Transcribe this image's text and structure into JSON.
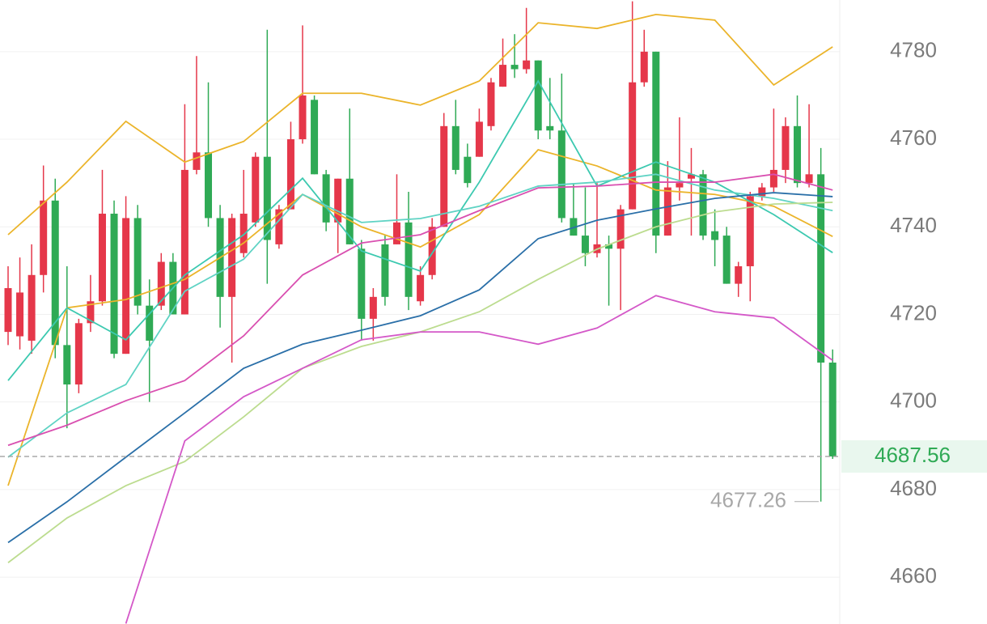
{
  "chart_data": {
    "type": "candlestick",
    "ylim": [
      4649.3,
      4791.8
    ],
    "yticks": [
      4660,
      4680,
      4700,
      4720,
      4740,
      4760,
      4780
    ],
    "grid": true,
    "up_color": "#e5374a",
    "down_color": "#2faa55",
    "open": [
      4716,
      4715,
      4714,
      4729,
      4746,
      4713,
      4704,
      4718,
      4723,
      4743,
      4711,
      4742,
      4722,
      4722,
      4732,
      4720,
      4753,
      4757,
      4742,
      4724,
      4734,
      4741,
      4756,
      4736,
      4744,
      4760,
      4769,
      4752,
      4741,
      4751,
      4735,
      4719,
      4736,
      4736,
      4741,
      4723,
      4729,
      4740,
      4763,
      4756,
      4756,
      4763,
      4772,
      4777,
      4776,
      4778,
      4763,
      4762,
      4742,
      4738,
      4734,
      4736,
      4735,
      4744,
      4773,
      4780,
      4738,
      4749,
      4751,
      4752,
      4739,
      4738,
      4727,
      4731,
      4747,
      4749,
      4753,
      4763,
      4750,
      4752,
      4709
    ],
    "high": [
      4731,
      4733,
      4736,
      4754,
      4751,
      4731,
      4719,
      4729,
      4753,
      4746,
      4747,
      4745,
      4728,
      4734,
      4734,
      4768,
      4779,
      4773,
      4745,
      4743,
      4753,
      4757,
      4785,
      4745,
      4764,
      4786,
      4770,
      4753,
      4751,
      4767,
      4737,
      4726,
      4738,
      4752,
      4748,
      4731,
      4742,
      4766,
      4769,
      4759,
      4767,
      4774,
      4783,
      4784,
      4790,
      4778,
      4774,
      4775,
      4750,
      4749,
      4750,
      4738,
      4745,
      4791.5,
      4785,
      4780,
      4755,
      4765,
      4758,
      4753,
      4744,
      4740,
      4732,
      4748,
      4750,
      4767,
      4765,
      4770,
      4768,
      4758,
      4712
    ],
    "low": [
      4713,
      4712,
      4711,
      4725,
      4710,
      4694,
      4702,
      4716,
      4722,
      4710,
      4711,
      4720,
      4700,
      4721,
      4720,
      4720,
      4752,
      4740,
      4717,
      4709,
      4733,
      4740,
      4727,
      4735,
      4744,
      4759,
      4752,
      4739,
      4734,
      4736,
      4714,
      4714,
      4722,
      4736,
      4721,
      4722,
      4728,
      4740,
      4752,
      4749,
      4756,
      4762,
      4772,
      4774,
      4775,
      4760,
      4760,
      4741,
      4738,
      4731,
      4733,
      4722,
      4721,
      4744,
      4772,
      4734,
      4738,
      4746,
      4738,
      4737,
      4731,
      4727,
      4724,
      4723,
      4746,
      4748,
      4750,
      4749,
      4749,
      4677.26,
      4687
    ],
    "close": [
      4726,
      4725,
      4729,
      4746,
      4713,
      4704,
      4718,
      4723,
      4743,
      4711,
      4742,
      4722,
      4714,
      4732,
      4720,
      4753,
      4757,
      4742,
      4724,
      4742,
      4743,
      4756,
      4737,
      4744,
      4760,
      4770,
      4752,
      4741,
      4751,
      4736,
      4719,
      4724,
      4724,
      4741,
      4724,
      4729,
      4740,
      4763,
      4753,
      4750,
      4764,
      4773,
      4777,
      4776,
      4778,
      4762,
      4762,
      4742,
      4738,
      4734,
      4736,
      4735,
      4744,
      4773,
      4780,
      4738,
      4749,
      4750,
      4752,
      4738,
      4737,
      4727,
      4731,
      4747,
      4749,
      4753,
      4763,
      4750,
      4752,
      4709,
      4687.56
    ],
    "overlay_x": [
      0,
      5,
      10,
      15,
      20,
      25,
      30,
      35,
      40,
      45,
      50,
      55,
      60,
      65,
      70
    ],
    "overlays": [
      {
        "color": "#ebb42a",
        "values": [
          4738.2,
          4750.2,
          4764.1,
          4754.8,
          4759.5,
          4770.5,
          4770.5,
          4767.8,
          4773.3,
          4786.6,
          4785.3,
          4788.5,
          4787.2,
          4772.4,
          4781.1
        ]
      },
      {
        "color": "#ebb42a",
        "values": [
          4680.9,
          4721.5,
          4723.4,
          4728.0,
          4736.3,
          4747.4,
          4740.0,
          4735.4,
          4742.8,
          4757.6,
          4753.9,
          4748.4,
          4747.4,
          4744.7,
          4737.8
        ]
      },
      {
        "color": "#3cc9b0",
        "values": [
          4704.9,
          4721.5,
          4714.2,
          4729.0,
          4738.2,
          4751.1,
          4734.5,
          4729.9,
          4750.2,
          4773.3,
          4749.3,
          4754.8,
          4750.2,
          4742.8,
          4734.1
        ]
      },
      {
        "color": "#5fd3c4",
        "values": [
          4687.4,
          4697.5,
          4704.0,
          4725.3,
          4732.6,
          4747.4,
          4741.0,
          4741.9,
          4744.7,
          4749.3,
          4750.2,
          4752.0,
          4748.4,
          4746.5,
          4743.7
        ]
      },
      {
        "color": "#d94fb0",
        "values": [
          4690.1,
          4694.7,
          4700.3,
          4704.9,
          4715.1,
          4729.0,
          4736.3,
          4738.2,
          4743.7,
          4748.9,
          4749.3,
          4750.2,
          4750.2,
          4752.0,
          4748.4
        ]
      },
      {
        "color": "#2a6fa8",
        "values": [
          4667.9,
          4677.2,
          4687.4,
          4697.5,
          4707.7,
          4713.2,
          4716.4,
          4719.7,
          4725.6,
          4737.3,
          4741.5,
          4744.1,
          4746.5,
          4747.8,
          4746.9
        ]
      },
      {
        "color": "#bcdc8f",
        "values": [
          4663.3,
          4673.5,
          4680.9,
          4686.4,
          4696.6,
          4707.7,
          4712.7,
          4716.0,
          4720.6,
          4728.0,
          4734.9,
          4740.0,
          4743.4,
          4745.2,
          4745.6
        ]
      },
      {
        "color": "#d458c8",
        "values": [
          null,
          null,
          4649.4,
          4691.1,
          4701.2,
          4707.7,
          4714.2,
          4716.0,
          4716.0,
          4713.2,
          4716.9,
          4724.3,
          4720.6,
          4719.2,
          4709.5
        ]
      }
    ],
    "last_price": 4687.56,
    "low_label": 4677.26
  }
}
